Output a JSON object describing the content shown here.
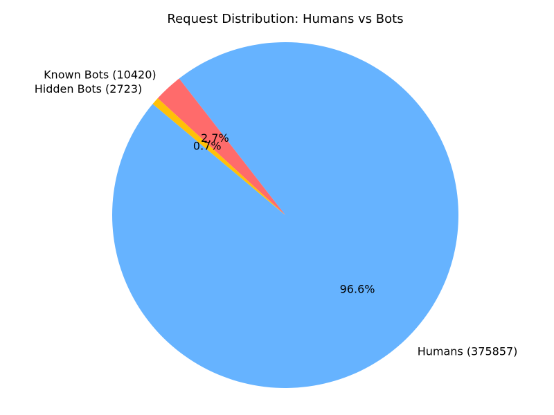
{
  "chart_data": {
    "type": "pie",
    "title": "Request Distribution: Humans vs Bots",
    "slices": [
      {
        "label": "Humans (375857)",
        "category": "Humans",
        "value": 375857,
        "percent_label": "96.6%",
        "color": "#66b3ff"
      },
      {
        "label": "Known Bots (10420)",
        "category": "Known Bots",
        "value": 10420,
        "percent_label": "2.7%",
        "color": "#ff6b6b"
      },
      {
        "label": "Hidden Bots (2723)",
        "category": "Hidden Bots",
        "value": 2723,
        "percent_label": "0.7%",
        "color": "#ffc107"
      }
    ],
    "legend": "none"
  }
}
